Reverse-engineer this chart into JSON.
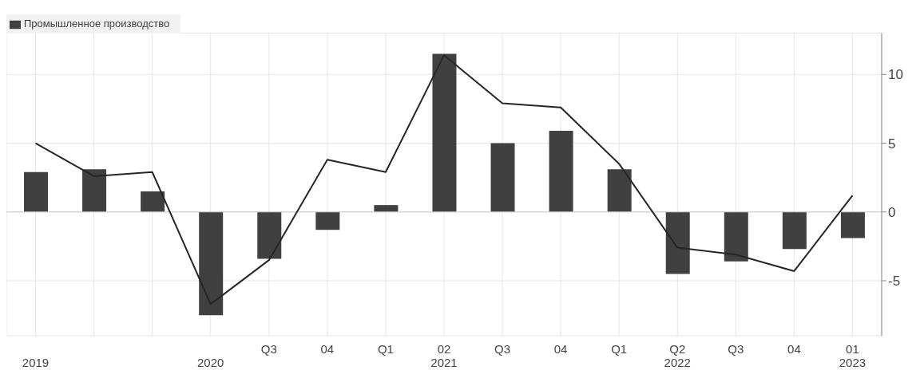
{
  "chart_data": {
    "type": "bar",
    "categories": [
      "\n2019",
      null,
      null,
      "\n2020",
      "Q3",
      "04",
      "Q1",
      "02\n2021",
      "Q3",
      "04",
      "Q1",
      "Q2\n2022",
      "Q3",
      "04",
      "01\n2023"
    ],
    "series": [
      {
        "name": "Промышленное производство",
        "color": "#404040",
        "values": [
          2.9,
          3.1,
          1.5,
          -7.5,
          -3.4,
          -1.3,
          0.5,
          11.5,
          5.0,
          5.9,
          3.1,
          -4.5,
          -3.6,
          -2.7,
          -1.9
        ]
      },
      {
        "type": "line",
        "color": "#262626",
        "values": [
          5.0,
          2.6,
          2.9,
          -6.7,
          -3.5,
          3.8,
          2.9,
          11.4,
          7.9,
          7.6,
          3.5,
          -2.6,
          -3.1,
          -4.3,
          1.2
        ]
      }
    ],
    "ylim": [
      -9,
      13
    ],
    "yticks": [
      -5,
      0,
      5,
      10
    ],
    "grid": true,
    "legend": "top left",
    "marker": "none",
    "line_style": "solid"
  }
}
